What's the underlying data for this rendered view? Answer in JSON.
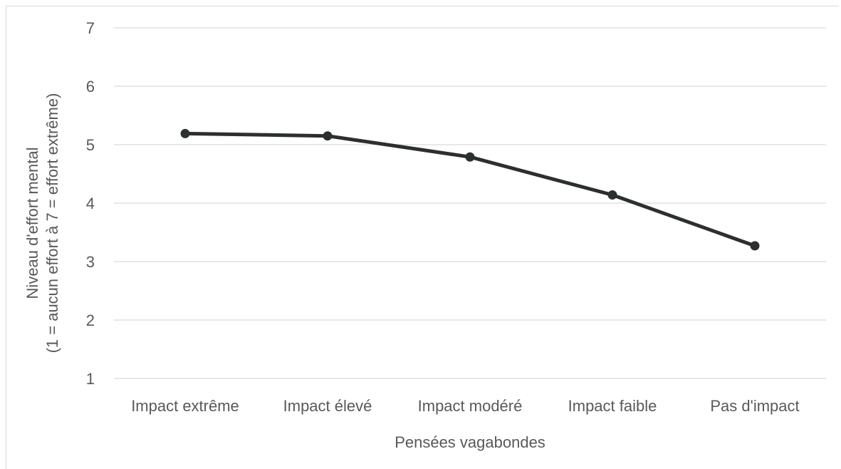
{
  "chart_data": {
    "type": "line",
    "categories": [
      "Impact extrême",
      "Impact élevé",
      "Impact modéré",
      "Impact faible",
      "Pas d'impact"
    ],
    "series": [
      {
        "values": [
          5.19,
          5.15,
          4.79,
          4.14,
          3.27
        ]
      }
    ],
    "xlabel": "Pensées vagabondes",
    "ylabel": [
      "Niveau d'effort mental",
      "(1 = aucun effort à 7 = effort extrême)"
    ],
    "ylim": [
      1,
      7
    ],
    "yticks": [
      1,
      2,
      3,
      4,
      5,
      6,
      7
    ],
    "grid": true,
    "line_color": "#2b302d"
  }
}
